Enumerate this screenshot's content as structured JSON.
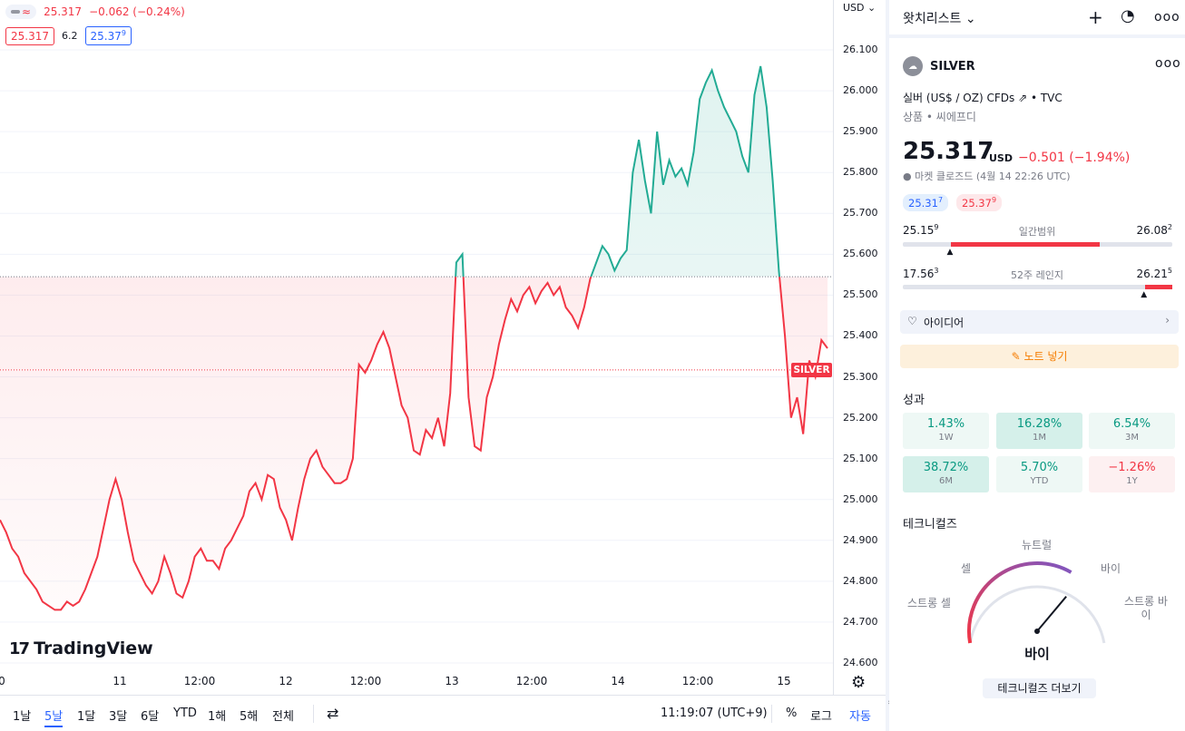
{
  "chart": {
    "legend": {
      "price": "25.317",
      "change": "−0.062 (−0.24%)"
    },
    "bid": "25.317",
    "spread": "6.2",
    "ask_main": "25.37",
    "ask_sup": "9",
    "currency": "USD",
    "currency_caret": "⌄",
    "symbol_tag": "SILVER",
    "brand": "TradingView",
    "price_labels": [
      "26.100",
      "26.000",
      "25.900",
      "25.800",
      "25.700",
      "25.600",
      "25.500",
      "25.400",
      "25.300",
      "25.200",
      "25.100",
      "25.000",
      "24.900",
      "24.800",
      "24.700",
      "24.600"
    ],
    "time_labels": [
      "0",
      "11",
      "12:00",
      "12",
      "12:00",
      "13",
      "12:00",
      "14",
      "12:00",
      "15"
    ]
  },
  "chart_data": {
    "type": "area",
    "title": "",
    "xlabel": "",
    "ylabel": "",
    "x_ticks": [
      "11",
      "12:00",
      "12",
      "12:00",
      "13",
      "12:00",
      "14",
      "12:00",
      "15"
    ],
    "ylim": [
      24.58,
      26.15
    ],
    "reference_price": 25.545,
    "last_price": 25.317,
    "grid": true,
    "colors": {
      "above": "#22ab94",
      "below": "#f23645"
    },
    "series": [
      {
        "values": [
          24.95,
          24.92,
          24.88,
          24.86,
          24.82,
          24.8,
          24.78,
          24.75,
          24.74,
          24.73,
          24.73,
          24.75,
          24.74,
          24.75,
          24.78,
          24.82,
          24.86,
          24.93,
          25.0,
          25.05,
          25.0,
          24.92,
          24.85,
          24.82,
          24.79,
          24.77,
          24.8,
          24.86,
          24.82,
          24.77,
          24.76,
          24.8,
          24.86,
          24.88,
          24.85,
          24.85,
          24.83,
          24.88,
          24.9,
          24.93,
          24.96,
          25.02,
          25.04,
          25.0,
          25.06,
          25.05,
          24.98,
          24.95,
          24.9,
          24.98,
          25.05,
          25.1,
          25.12,
          25.08,
          25.06,
          25.04,
          25.04,
          25.05,
          25.1,
          25.33,
          25.31,
          25.34,
          25.38,
          25.41,
          25.37,
          25.3,
          25.23,
          25.2,
          25.12,
          25.11,
          25.17,
          25.15,
          25.2,
          25.13,
          25.26,
          25.58,
          25.6,
          25.25,
          25.13,
          25.12,
          25.25,
          25.3,
          25.38,
          25.44,
          25.49,
          25.46,
          25.5,
          25.52,
          25.48,
          25.51,
          25.53,
          25.5,
          25.52,
          25.47,
          25.45,
          25.42,
          25.47,
          25.54,
          25.58,
          25.62,
          25.6,
          25.56,
          25.59,
          25.61,
          25.8,
          25.88,
          25.78,
          25.7,
          25.9,
          25.77,
          25.83,
          25.79,
          25.81,
          25.77,
          25.85,
          25.98,
          26.02,
          26.05,
          26.0,
          25.96,
          25.93,
          25.9,
          25.84,
          25.8,
          25.99,
          26.06,
          25.96,
          25.78,
          25.56,
          25.4,
          25.2,
          25.25,
          25.16,
          25.34,
          25.3,
          25.39,
          25.37
        ]
      }
    ]
  },
  "bottom_bar": {
    "ranges": [
      "1날",
      "5날",
      "1달",
      "3달",
      "6달",
      "YTD",
      "1해",
      "5해",
      "전체"
    ],
    "active_range": "5날",
    "time": "11:19:07 (UTC+9)",
    "percent": "%",
    "log": "로그",
    "auto": "자동"
  },
  "panel": {
    "title": "왓치리스트",
    "title_caret": "⌄",
    "symbol": "SILVER",
    "symbol_logo": "☁",
    "description": "실버 (US$ / OZ) CFDs",
    "exchange": "• TVC",
    "category": "상품 • 씨에프디",
    "price": "25.317",
    "price_currency": "USD",
    "price_change": "−0.501 (−1.94%)",
    "market_status": "● 마켓 클로즈드",
    "market_time": "(4월 14 22:26 UTC)",
    "bid_pill": "25.31",
    "bid_pill_sup": "7",
    "ask_pill": "25.37",
    "ask_pill_sup": "9",
    "day_range": {
      "low": "25.15",
      "low_sup": "9",
      "label": "일간범위",
      "high": "26.08",
      "high_sup": "2",
      "fill_start": 0.18,
      "fill_end": 0.73,
      "marker": 0.18
    },
    "week52_range": {
      "low": "17.56",
      "low_sup": "3",
      "label": "52주 레인지",
      "high": "26.21",
      "high_sup": "5",
      "fill_start": 0.9,
      "fill_end": 1.0,
      "marker": 0.9
    },
    "ideas": "아이디어",
    "ideas_chevron": "›",
    "note": "노트 넣기",
    "note_icon": "✎",
    "performance_title": "성과",
    "performance": [
      {
        "value": "1.43%",
        "period": "1W",
        "positive": true
      },
      {
        "value": "16.28%",
        "period": "1M",
        "positive": true
      },
      {
        "value": "6.54%",
        "period": "3M",
        "positive": true
      },
      {
        "value": "38.72%",
        "period": "6M",
        "positive": true
      },
      {
        "value": "5.70%",
        "period": "YTD",
        "positive": true
      },
      {
        "value": "−1.26%",
        "period": "1Y",
        "positive": false
      }
    ],
    "technicals_title": "테크니컬즈",
    "gauge": {
      "neutral": "뉴트럴",
      "sell": "셀",
      "buy": "바이",
      "strong_sell": "스트롱 셀",
      "strong_buy_1": "스트롱 바",
      "strong_buy_2": "이",
      "result": "바이"
    },
    "tech_more": "테크니컬즈 더보기"
  },
  "icons": {
    "plus": "plus-icon",
    "pie": "pie-chart-icon",
    "more": "more-icon",
    "gear": "gear-icon",
    "calendar": "calendar-icon",
    "bulb": "lightbulb-icon",
    "external": "external-link-icon"
  }
}
